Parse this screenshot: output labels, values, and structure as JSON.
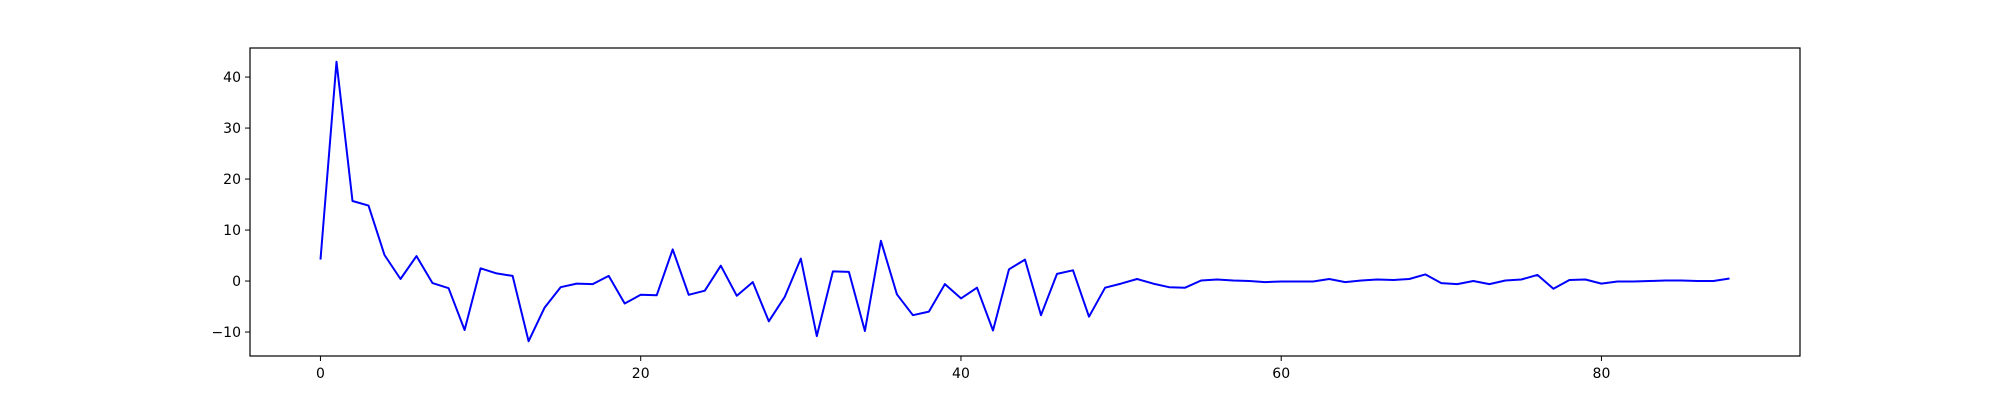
{
  "chart_data": {
    "type": "line",
    "title": "",
    "xlabel": "",
    "ylabel": "",
    "xlim": [
      -4.4,
      92.4
    ],
    "ylim": [
      -14.7,
      45.7
    ],
    "xticks": [
      0,
      20,
      40,
      60,
      80
    ],
    "yticks": [
      -10,
      0,
      10,
      20,
      30,
      40
    ],
    "grid": false,
    "legend": "none",
    "series": [
      {
        "color": "#0000ff",
        "x": [
          0,
          1,
          2,
          3,
          4,
          5,
          6,
          7,
          8,
          9,
          10,
          11,
          12,
          13,
          14,
          15,
          16,
          17,
          18,
          19,
          20,
          21,
          22,
          23,
          24,
          25,
          26,
          27,
          28,
          29,
          30,
          31,
          32,
          33,
          34,
          35,
          36,
          37,
          38,
          39,
          40,
          41,
          42,
          43,
          44,
          45,
          46,
          47,
          48,
          49,
          50,
          51,
          52,
          53,
          54,
          55,
          56,
          57,
          58,
          59,
          60,
          61,
          62,
          63,
          64,
          65,
          66,
          67,
          68,
          69,
          70,
          71,
          72,
          73,
          74,
          75,
          76,
          77,
          78,
          79,
          80,
          81,
          82,
          83,
          84,
          85,
          86,
          87,
          88
        ],
        "values": [
          4.2,
          43.0,
          15.7,
          14.8,
          5.1,
          0.4,
          4.9,
          -0.4,
          -1.4,
          -9.6,
          2.5,
          1.5,
          1.0,
          -11.8,
          -5.2,
          -1.2,
          -0.5,
          -0.6,
          1.0,
          -4.4,
          -2.7,
          -2.8,
          6.2,
          -2.7,
          -1.9,
          3.0,
          -2.9,
          -0.2,
          -7.9,
          -3.1,
          4.4,
          -10.8,
          1.9,
          1.8,
          -9.8,
          7.9,
          -2.6,
          -6.7,
          -6.0,
          -0.6,
          -3.4,
          -1.3,
          -9.7,
          2.3,
          4.2,
          -6.7,
          1.4,
          2.1,
          -7.0,
          -1.3,
          -0.5,
          0.4,
          -0.5,
          -1.2,
          -1.3,
          0.1,
          0.3,
          0.1,
          0.0,
          -0.2,
          -0.1,
          -0.1,
          -0.1,
          0.4,
          -0.2,
          0.1,
          0.3,
          0.2,
          0.4,
          1.3,
          -0.4,
          -0.6,
          0.0,
          -0.6,
          0.1,
          0.3,
          1.2,
          -1.5,
          0.2,
          0.3,
          -0.5,
          -0.1,
          -0.1,
          0.0,
          0.1,
          0.1,
          0.0,
          0.0,
          0.5
        ]
      }
    ]
  }
}
